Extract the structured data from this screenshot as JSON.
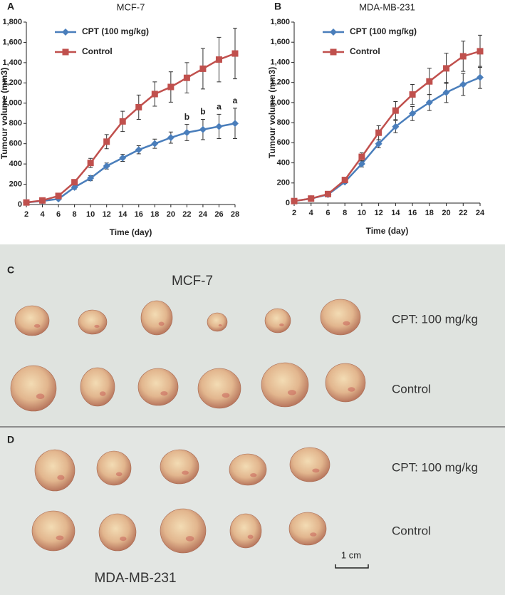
{
  "chart_data": [
    {
      "type": "line",
      "panel_label": "A",
      "title": "MCF-7",
      "x_label": "Time (day)",
      "y_label": "Tumour volume (mm3)",
      "x": [
        2,
        4,
        6,
        8,
        10,
        12,
        14,
        16,
        18,
        20,
        22,
        24,
        26,
        28
      ],
      "xlim": [
        2,
        28
      ],
      "xticks": [
        2,
        4,
        6,
        8,
        10,
        12,
        14,
        16,
        18,
        20,
        22,
        24,
        26,
        28
      ],
      "ylim": [
        0,
        1800
      ],
      "yticks": [
        0,
        200,
        400,
        600,
        800,
        {
          "value": 1000,
          "label": "1,000"
        },
        {
          "value": 1200,
          "label": "1,200"
        },
        {
          "value": 1400,
          "label": "1,400"
        },
        {
          "value": 1600,
          "label": "1,600"
        },
        {
          "value": 1800,
          "label": "1,800"
        }
      ],
      "legend": "upper left",
      "series": [
        {
          "name": "CPT (100 mg/kg)",
          "color": "#4a7ebb",
          "marker": "diamond",
          "values": [
            20,
            35,
            55,
            170,
            260,
            380,
            460,
            540,
            600,
            660,
            710,
            740,
            770,
            800
          ],
          "errors": [
            5,
            5,
            10,
            20,
            25,
            30,
            35,
            40,
            45,
            55,
            80,
            100,
            120,
            150
          ]
        },
        {
          "name": "Control",
          "color": "#c0504d",
          "marker": "square",
          "values": [
            20,
            40,
            85,
            220,
            410,
            620,
            820,
            960,
            1090,
            1160,
            1250,
            1340,
            1430,
            1490
          ],
          "errors": [
            5,
            5,
            10,
            20,
            45,
            70,
            100,
            120,
            120,
            150,
            150,
            200,
            220,
            250
          ]
        }
      ],
      "annotations": [
        {
          "x": 22,
          "text": "b"
        },
        {
          "x": 24,
          "text": "b"
        },
        {
          "x": 26,
          "text": "a"
        },
        {
          "x": 28,
          "text": "a"
        }
      ]
    },
    {
      "type": "line",
      "panel_label": "B",
      "title": "MDA-MB-231",
      "x_label": "Time (day)",
      "y_label": "Tumour volume (mm3)",
      "x": [
        2,
        4,
        6,
        8,
        10,
        12,
        14,
        16,
        18,
        20,
        22,
        24
      ],
      "xlim": [
        2,
        24
      ],
      "xticks": [
        2,
        4,
        6,
        8,
        10,
        12,
        14,
        16,
        18,
        20,
        22,
        24
      ],
      "ylim": [
        0,
        1800
      ],
      "yticks": [
        0,
        200,
        400,
        600,
        800,
        {
          "value": 1000,
          "label": "1,000"
        },
        {
          "value": 1200,
          "label": "1,200"
        },
        {
          "value": 1400,
          "label": "1,400"
        },
        {
          "value": 1600,
          "label": "1,600"
        },
        {
          "value": 1800,
          "label": "1,800"
        }
      ],
      "legend": "upper left",
      "series": [
        {
          "name": "CPT (100 mg/kg)",
          "color": "#4a7ebb",
          "marker": "diamond",
          "values": [
            20,
            45,
            85,
            210,
            390,
            590,
            760,
            890,
            1000,
            1100,
            1180,
            1250
          ],
          "errors": [
            5,
            5,
            10,
            15,
            30,
            40,
            60,
            70,
            80,
            100,
            110,
            110
          ]
        },
        {
          "name": "Control",
          "color": "#c0504d",
          "marker": "square",
          "values": [
            20,
            45,
            90,
            230,
            460,
            700,
            920,
            1080,
            1210,
            1340,
            1460,
            1510
          ],
          "errors": [
            5,
            5,
            10,
            15,
            40,
            70,
            90,
            100,
            130,
            150,
            150,
            160
          ]
        }
      ]
    }
  ],
  "panels": [
    {
      "letter": "C",
      "title": "MCF-7",
      "labels": [
        "CPT: 100 mg/kg",
        "Control"
      ]
    },
    {
      "letter": "D",
      "title": "MDA-MB-231",
      "labels": [
        "CPT: 100 mg/kg",
        "Control"
      ],
      "scale_bar": "1 cm"
    }
  ]
}
